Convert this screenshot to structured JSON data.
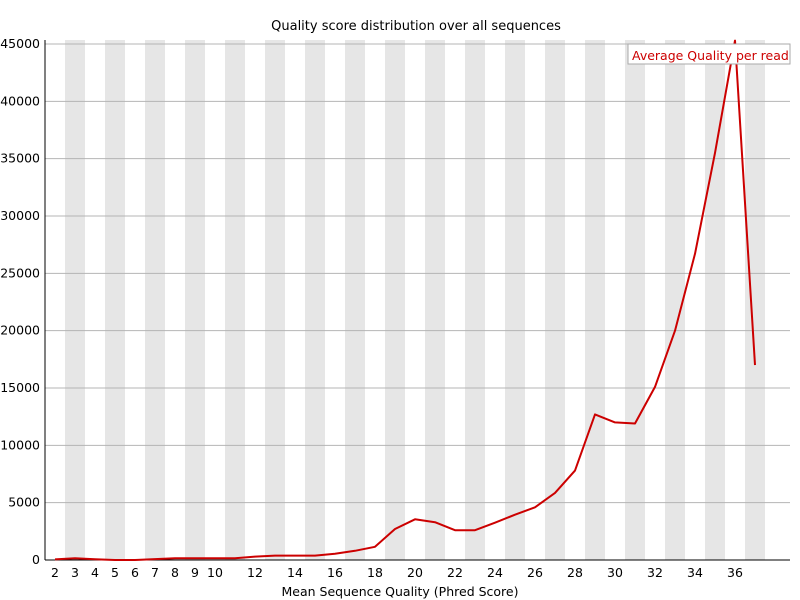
{
  "chart_data": {
    "type": "line",
    "title": "Quality score distribution over all sequences",
    "xlabel": "Mean Sequence Quality (Phred Score)",
    "ylabel": "",
    "x_tick_labels": [
      "2",
      "3",
      "4",
      "5",
      "6",
      "7",
      "8",
      "9",
      "10",
      "12",
      "14",
      "16",
      "18",
      "20",
      "22",
      "24",
      "26",
      "28",
      "30",
      "32",
      "34",
      "36"
    ],
    "y_ticks": [
      0,
      5000,
      10000,
      15000,
      20000,
      25000,
      30000,
      35000,
      40000,
      45000
    ],
    "ylim": [
      0,
      45000
    ],
    "xlim": [
      2,
      37
    ],
    "grid": true,
    "legend_position": "top-right",
    "series": [
      {
        "name": "Average Quality per read",
        "color": "#cc0000",
        "x": [
          2,
          3,
          4,
          5,
          6,
          7,
          8,
          9,
          10,
          11,
          12,
          13,
          14,
          15,
          16,
          17,
          18,
          19,
          20,
          21,
          22,
          23,
          24,
          25,
          26,
          27,
          28,
          29,
          30,
          31,
          32,
          33,
          34,
          35,
          36,
          37
        ],
        "values": [
          50,
          150,
          60,
          0,
          0,
          80,
          150,
          150,
          150,
          150,
          300,
          380,
          380,
          380,
          550,
          800,
          1150,
          2700,
          3550,
          3300,
          2600,
          2600,
          3250,
          3950,
          4600,
          5850,
          7800,
          12700,
          12000,
          11900,
          15100,
          20000,
          26700,
          35500,
          45300,
          17000
        ]
      }
    ]
  }
}
